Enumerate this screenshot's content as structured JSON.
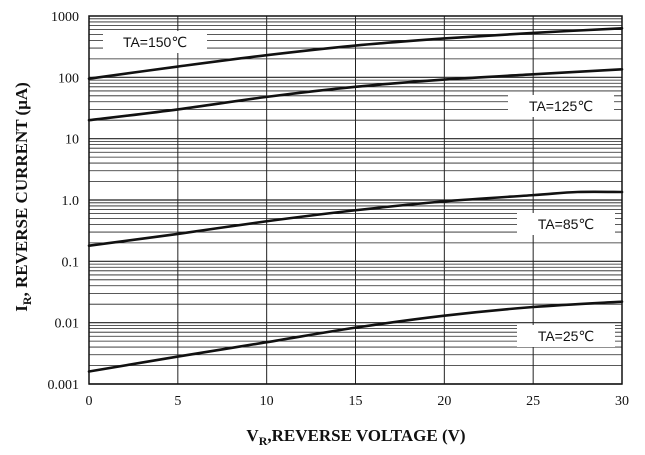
{
  "chart_data": {
    "type": "line",
    "title": "",
    "xlabel": {
      "main": "V",
      "sub": "R",
      "rest": ",REVERSE VOLTAGE (V)"
    },
    "ylabel": {
      "main": "I",
      "sub": "R",
      "rest": ", REVERSE CURRENT (μA)"
    },
    "xlim": [
      0,
      30
    ],
    "ylim": [
      0.001,
      1000
    ],
    "yscale": "log",
    "grid": true,
    "x_ticks": [
      0,
      5,
      10,
      15,
      20,
      25,
      30
    ],
    "y_ticks": [
      0.001,
      0.01,
      0.1,
      1.0,
      10,
      100,
      1000
    ],
    "x_tick_labels": [
      "0",
      "5",
      "10",
      "15",
      "20",
      "25",
      "30"
    ],
    "y_tick_labels": [
      "0.001",
      "0.01",
      "0.1",
      "1.0",
      "10",
      "100",
      "1000"
    ],
    "series": [
      {
        "name": "TA=150℃",
        "x": [
          0,
          5,
          10,
          15,
          20,
          25,
          30
        ],
        "y": [
          95,
          150,
          230,
          330,
          430,
          530,
          630
        ]
      },
      {
        "name": "TA=125℃",
        "x": [
          0,
          5,
          10,
          15,
          20,
          25,
          30
        ],
        "y": [
          20,
          30,
          48,
          70,
          92,
          112,
          135
        ]
      },
      {
        "name": "TA=85℃",
        "x": [
          0,
          5,
          10,
          15,
          20,
          25,
          27.5,
          30
        ],
        "y": [
          0.18,
          0.28,
          0.45,
          0.68,
          0.95,
          1.2,
          1.35,
          1.35
        ]
      },
      {
        "name": "TA=25℃",
        "x": [
          0,
          5,
          10,
          15,
          20,
          25,
          30
        ],
        "y": [
          0.0016,
          0.0028,
          0.0048,
          0.0083,
          0.013,
          0.018,
          0.022
        ]
      }
    ]
  }
}
